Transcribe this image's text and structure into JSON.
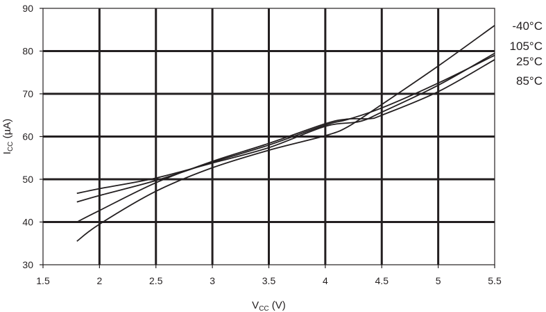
{
  "chart_data": {
    "type": "line",
    "xlabel": {
      "main": "V",
      "sub": "CC",
      "unit": " (V)"
    },
    "ylabel": {
      "main": "I",
      "sub": "CC",
      "unit": " (µA)"
    },
    "xlim": [
      1.5,
      5.5
    ],
    "ylim": [
      30,
      90
    ],
    "x_ticks": [
      1.5,
      2,
      2.5,
      3,
      3.5,
      4,
      4.5,
      5,
      5.5
    ],
    "x_tick_labels": [
      "1.5",
      "2",
      "2.5",
      "3",
      "3.5",
      "4",
      "4.5",
      "5",
      "5.5"
    ],
    "y_ticks": [
      30,
      40,
      50,
      60,
      70,
      80,
      90
    ],
    "y_tick_labels": [
      "30",
      "40",
      "50",
      "60",
      "70",
      "80",
      "90"
    ],
    "grid": true,
    "legend_position": "right",
    "series": [
      {
        "name": "-40°C",
        "x": [
          1.8,
          2,
          2.5,
          3,
          3.5,
          4,
          4.2,
          4.5,
          5,
          5.5
        ],
        "y": [
          35.5,
          39.5,
          47.2,
          52.7,
          56.8,
          60.2,
          62.3,
          67.5,
          76.5,
          86
        ]
      },
      {
        "name": "105°C",
        "x": [
          1.8,
          2,
          2.5,
          3,
          3.5,
          4,
          4.3,
          4.5,
          5,
          5.5
        ],
        "y": [
          46.7,
          47.8,
          50.3,
          53.8,
          57.4,
          62.4,
          63.5,
          65.7,
          72.0,
          79.5
        ]
      },
      {
        "name": "25°C",
        "x": [
          1.8,
          2,
          2.5,
          3,
          3.5,
          4,
          4.2,
          4.5,
          5,
          5.5
        ],
        "y": [
          44.7,
          46.2,
          49.7,
          54.0,
          58.0,
          62.7,
          64.0,
          66.7,
          72.5,
          79.0
        ]
      },
      {
        "name": "85°C",
        "x": [
          1.8,
          2,
          2.5,
          3,
          3.5,
          4,
          4.2,
          4.4,
          4.5,
          5,
          5.5
        ],
        "y": [
          40.0,
          42.7,
          49.2,
          54.2,
          58.4,
          63.0,
          64.1,
          64.2,
          65.0,
          70.5,
          78.0
        ]
      }
    ]
  }
}
